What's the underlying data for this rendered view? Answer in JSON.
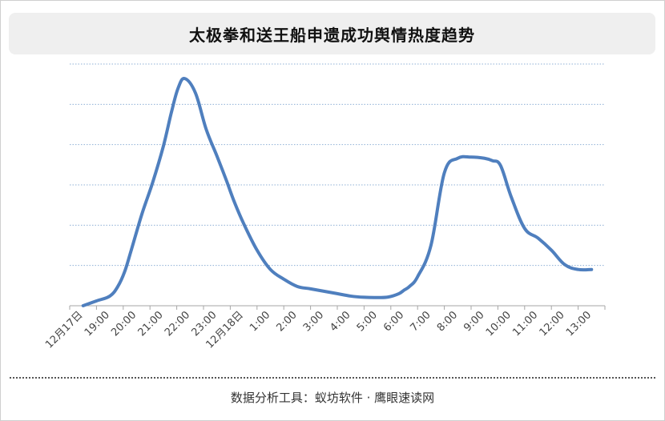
{
  "title": "太极拳和送王船申遗成功舆情热度趋势",
  "footer": "数据分析工具：蚁坊软件 · 鹰眼速读网",
  "colors": {
    "line": "#4f7fbe",
    "grid": "#8fb0d6",
    "axis": "#a6a6a6",
    "tick_text": "#444444"
  },
  "chart_data": {
    "type": "line",
    "title": "太极拳和送王船申遗成功舆情热度趋势",
    "xlabel": "",
    "ylabel": "",
    "categories": [
      "12月17日",
      "19:00",
      "20:00",
      "21:00",
      "22:00",
      "23:00",
      "12月18日",
      "1:00",
      "2:00",
      "3:00",
      "4:00",
      "5:00",
      "6:00",
      "7:00",
      "8:00",
      "9:00",
      "10:00",
      "11:00",
      "12:00",
      "13:00"
    ],
    "ylim": [
      0,
      100
    ],
    "y_ticks_labeled": false,
    "grid": "horizontal-dotted",
    "legend": "none",
    "series": [
      {
        "x": [
          0,
          0.5,
          1,
          1.3,
          1.55,
          1.8,
          2.2,
          2.6,
          3.0,
          3.3,
          3.55,
          3.8,
          4.2,
          4.6,
          5.0,
          5.35,
          5.65,
          6.0,
          6.5,
          7.0,
          7.5,
          8.0,
          8.5,
          9.0,
          9.5,
          10.0,
          10.5,
          11.0,
          11.4,
          11.8,
          12.0,
          12.2,
          12.5,
          13.0,
          13.5,
          14.0,
          14.5,
          15.0,
          15.3,
          15.6,
          16.0,
          16.5,
          17.0,
          17.5,
          18.0,
          18.5,
          19.0
        ],
        "values": [
          0,
          2,
          4,
          8,
          14,
          23,
          38,
          51,
          66,
          80,
          90,
          94,
          88,
          73,
          62,
          52,
          43,
          34,
          23,
          15,
          11,
          8,
          7,
          6,
          5,
          4,
          3.5,
          3.4,
          3.6,
          5,
          6.5,
          8,
          12,
          25,
          55,
          61,
          61.5,
          61,
          60,
          58,
          45,
          32,
          28,
          23,
          17,
          15,
          15
        ]
      }
    ]
  }
}
